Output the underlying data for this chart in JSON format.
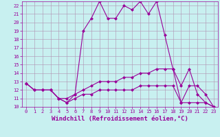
{
  "xlabel": "Windchill (Refroidissement éolien,°C)",
  "bg_color": "#c8f0f0",
  "grid_color": "#b090b0",
  "line_color": "#990099",
  "x": [
    0,
    1,
    2,
    3,
    4,
    5,
    6,
    7,
    8,
    9,
    10,
    11,
    12,
    13,
    14,
    15,
    16,
    17,
    18,
    19,
    20,
    21,
    22,
    23
  ],
  "line1": [
    12.8,
    12.0,
    12.0,
    12.0,
    11.0,
    11.0,
    11.5,
    19.0,
    20.5,
    22.5,
    20.5,
    20.5,
    22.0,
    21.5,
    22.5,
    21.0,
    22.5,
    18.5,
    14.5,
    12.5,
    14.5,
    11.5,
    10.5,
    10.0
  ],
  "line2": [
    12.8,
    12.0,
    12.0,
    12.0,
    11.0,
    10.5,
    11.5,
    12.0,
    12.5,
    13.0,
    13.0,
    13.0,
    13.5,
    13.5,
    14.0,
    14.0,
    14.5,
    14.5,
    14.5,
    10.5,
    12.5,
    12.5,
    11.5,
    10.0
  ],
  "line3": [
    12.8,
    12.0,
    12.0,
    12.0,
    11.0,
    10.5,
    11.0,
    11.5,
    11.5,
    12.0,
    12.0,
    12.0,
    12.0,
    12.0,
    12.5,
    12.5,
    12.5,
    12.5,
    12.5,
    10.5,
    10.5,
    10.5,
    10.5,
    10.0
  ],
  "xlim": [
    -0.5,
    23.5
  ],
  "ylim": [
    10,
    22.5
  ],
  "yticks": [
    10,
    11,
    12,
    13,
    14,
    15,
    16,
    17,
    18,
    19,
    20,
    21,
    22
  ],
  "xticks": [
    0,
    1,
    2,
    3,
    4,
    5,
    6,
    7,
    8,
    9,
    10,
    11,
    12,
    13,
    14,
    15,
    16,
    17,
    18,
    19,
    20,
    21,
    22,
    23
  ],
  "tick_fontsize": 5.0,
  "xlabel_fontsize": 6.5,
  "marker": "D",
  "markersize": 2.0,
  "linewidth": 0.8
}
